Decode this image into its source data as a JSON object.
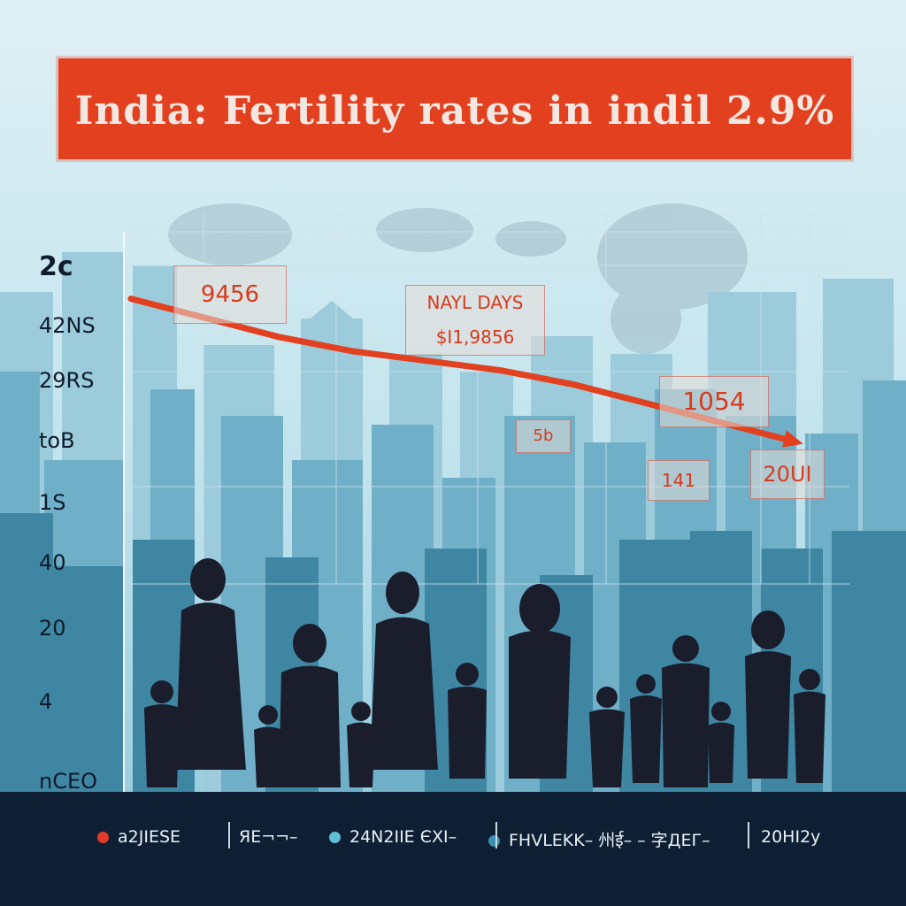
{
  "title": "India: Fertility rates in indil 2.9%",
  "y_tick_labels": [
    "2c",
    "42NS",
    "29RS",
    "toB",
    "1S",
    "40",
    "20",
    "4",
    "nCEO"
  ],
  "callouts": [
    {
      "id": "callout-1",
      "text": "9456"
    },
    {
      "id": "callout-2",
      "text": "NAYL DAYS\n$I1,9856"
    },
    {
      "id": "callout-3",
      "text": "5b"
    },
    {
      "id": "callout-4",
      "text": "1054"
    },
    {
      "id": "callout-5",
      "text": "141"
    },
    {
      "id": "callout-6",
      "text": "20UI"
    }
  ],
  "legend": [
    {
      "label": "a2JIESE",
      "color": "#e23b2a",
      "marker": "dot"
    },
    {
      "label": "ЯЕ¬¬–",
      "color": "",
      "marker": "none"
    },
    {
      "label": "24N2IIE ЄXI–",
      "color": "#5fc0d2",
      "marker": "dot"
    },
    {
      "label": "FHVLEKK– 州ई– – 字ДЕГ–",
      "color": "#3a8fb0",
      "marker": "dot"
    },
    {
      "label": "20HI2y",
      "color": "",
      "marker": "none"
    }
  ],
  "colors": {
    "sky_top": "#d8edf3",
    "sky_bottom": "#a6d3e2",
    "accent": "#e2401f",
    "ground": "#0e1f33",
    "silhouette": "#1a1f2e"
  },
  "chart_data": {
    "type": "line",
    "title": "India: Fertility rates in indil 2.9%",
    "xlabel": "",
    "ylabel": "",
    "ylim": [
      0,
      7
    ],
    "series": [
      {
        "name": "",
        "color": "#e2401f",
        "values": [
          5.6,
          5.2,
          4.8,
          4.5,
          4.3,
          4.1,
          3.8,
          3.4,
          3.0,
          2.6
        ]
      }
    ],
    "grid": true,
    "legend_position": "bottom"
  }
}
